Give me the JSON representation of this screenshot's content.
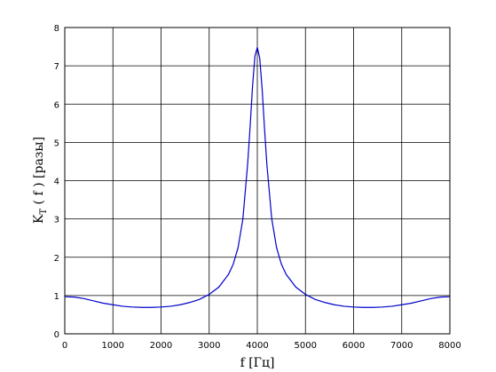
{
  "chart_data": {
    "type": "line",
    "xlabel": "f  [Гц]",
    "ylabel": "K_T ( f )  [разы]",
    "xlim": [
      0,
      8000
    ],
    "ylim": [
      0,
      8
    ],
    "x_ticks": [
      0,
      1000,
      2000,
      3000,
      4000,
      5000,
      6000,
      7000,
      8000
    ],
    "y_ticks": [
      0,
      1,
      2,
      3,
      4,
      5,
      6,
      7,
      8
    ],
    "grid": true,
    "line_color": "#0000cc",
    "series": [
      {
        "x": [
          0,
          200,
          400,
          600,
          800,
          1000,
          1200,
          1400,
          1600,
          1800,
          2000,
          2200,
          2400,
          2600,
          2800,
          3000,
          3200,
          3400,
          3500,
          3600,
          3700,
          3800,
          3850,
          3900,
          3950,
          4000,
          4050,
          4100,
          4150,
          4200,
          4300,
          4400,
          4500,
          4600,
          4800,
          5000,
          5200,
          5400,
          5600,
          5800,
          6000,
          6200,
          6400,
          6600,
          6800,
          7000,
          7200,
          7400,
          7600,
          7800,
          8000
        ],
        "y": [
          0.97,
          0.96,
          0.92,
          0.86,
          0.8,
          0.76,
          0.72,
          0.7,
          0.69,
          0.69,
          0.7,
          0.72,
          0.76,
          0.82,
          0.9,
          1.03,
          1.22,
          1.55,
          1.82,
          2.25,
          3.0,
          4.45,
          5.4,
          6.45,
          7.25,
          7.48,
          7.2,
          6.4,
          5.35,
          4.4,
          3.0,
          2.25,
          1.82,
          1.55,
          1.22,
          1.03,
          0.9,
          0.82,
          0.76,
          0.72,
          0.7,
          0.69,
          0.69,
          0.7,
          0.72,
          0.76,
          0.8,
          0.86,
          0.92,
          0.96,
          0.97
        ]
      }
    ]
  }
}
